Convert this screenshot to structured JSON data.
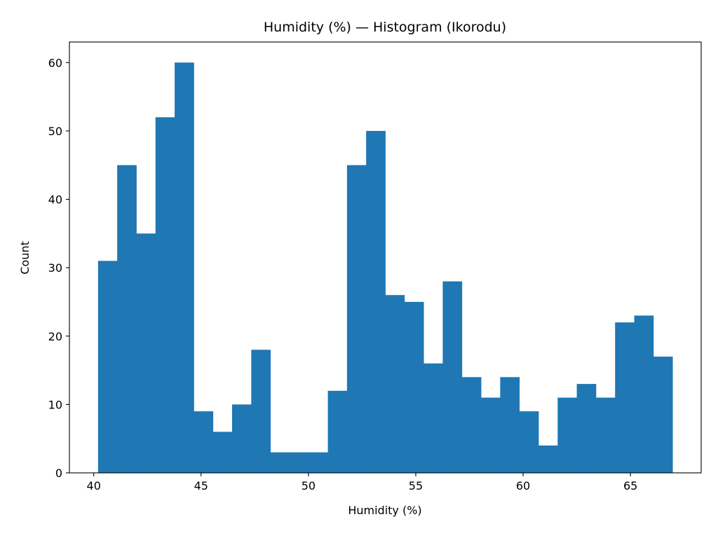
{
  "chart_data": {
    "type": "bar",
    "title": "Humidity (%) — Histogram (Ikorodu)",
    "xlabel": "Humidity (%)",
    "ylabel": "Count",
    "bin_edges": [
      40.2,
      41.092,
      41.984,
      42.876,
      43.768,
      44.66,
      45.552,
      46.444,
      47.336,
      48.228,
      49.12,
      50.012,
      50.904,
      51.796,
      52.688,
      53.58,
      54.472,
      55.364,
      56.256,
      57.148,
      58.04,
      58.932,
      59.824,
      60.716,
      61.608,
      62.5,
      63.392,
      64.284,
      65.176,
      66.068,
      66.96
    ],
    "values": [
      31,
      45,
      35,
      52,
      60,
      9,
      6,
      10,
      18,
      3,
      3,
      3,
      12,
      45,
      50,
      26,
      25,
      16,
      28,
      14,
      11,
      14,
      9,
      4,
      11,
      13,
      11,
      22,
      23,
      17
    ],
    "xlim": [
      38.866,
      68.294
    ],
    "ylim": [
      0,
      63
    ],
    "xticks": [
      40,
      45,
      50,
      55,
      60,
      65
    ],
    "yticks": [
      0,
      10,
      20,
      30,
      40,
      50,
      60
    ],
    "bar_color": "#1f77b4",
    "grid": false,
    "legend": "none"
  }
}
